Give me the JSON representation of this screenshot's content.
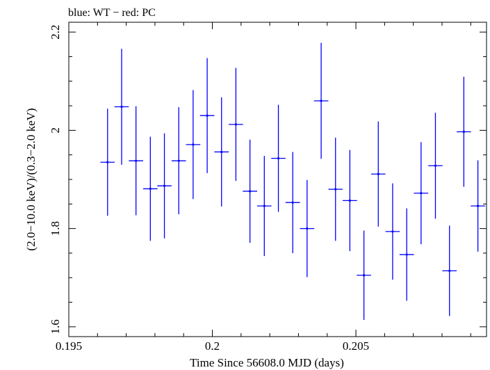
{
  "chart_data": {
    "type": "scatter",
    "title": "blue: WT − red: PC",
    "xlabel": "Time Since 56608.0 MJD (days)",
    "ylabel": "(2.0−10.0 keV)/(0.3−2.0 keV)",
    "xlim": [
      0.195,
      0.20955
    ],
    "ylim": [
      1.58,
      2.22
    ],
    "xticks": [
      {
        "value": 0.195,
        "label": "0.195"
      },
      {
        "value": 0.2,
        "label": "0.2"
      },
      {
        "value": 0.205,
        "label": "0.205"
      }
    ],
    "yticks": [
      {
        "value": 1.6,
        "label": "1.6"
      },
      {
        "value": 1.8,
        "label": "1.8"
      },
      {
        "value": 2.0,
        "label": "2"
      },
      {
        "value": 2.2,
        "label": "2.2"
      }
    ],
    "grid": false,
    "series": [
      {
        "color": "#0000ff",
        "points": [
          {
            "x": 0.19635,
            "y": 1.935,
            "xerr": 0.00025,
            "yerr": 0.109
          },
          {
            "x": 0.19684,
            "y": 2.048,
            "xerr": 0.00025,
            "yerr": 0.118
          },
          {
            "x": 0.19734,
            "y": 1.938,
            "xerr": 0.00025,
            "yerr": 0.111
          },
          {
            "x": 0.19784,
            "y": 1.881,
            "xerr": 0.00025,
            "yerr": 0.106
          },
          {
            "x": 0.19833,
            "y": 1.887,
            "xerr": 0.00025,
            "yerr": 0.107
          },
          {
            "x": 0.19883,
            "y": 1.938,
            "xerr": 0.00025,
            "yerr": 0.109
          },
          {
            "x": 0.19933,
            "y": 1.971,
            "xerr": 0.00025,
            "yerr": 0.111
          },
          {
            "x": 0.19982,
            "y": 2.03,
            "xerr": 0.00025,
            "yerr": 0.117
          },
          {
            "x": 0.20032,
            "y": 1.956,
            "xerr": 0.00025,
            "yerr": 0.111
          },
          {
            "x": 0.20082,
            "y": 2.012,
            "xerr": 0.00025,
            "yerr": 0.115
          },
          {
            "x": 0.20131,
            "y": 1.876,
            "xerr": 0.00025,
            "yerr": 0.105
          },
          {
            "x": 0.20181,
            "y": 1.846,
            "xerr": 0.00025,
            "yerr": 0.102
          },
          {
            "x": 0.2023,
            "y": 1.943,
            "xerr": 0.00025,
            "yerr": 0.109
          },
          {
            "x": 0.2028,
            "y": 1.853,
            "xerr": 0.00025,
            "yerr": 0.103
          },
          {
            "x": 0.2033,
            "y": 1.8,
            "xerr": 0.00025,
            "yerr": 0.099
          },
          {
            "x": 0.20379,
            "y": 2.06,
            "xerr": 0.00025,
            "yerr": 0.118
          },
          {
            "x": 0.20429,
            "y": 1.88,
            "xerr": 0.00025,
            "yerr": 0.105
          },
          {
            "x": 0.20479,
            "y": 1.857,
            "xerr": 0.00025,
            "yerr": 0.103
          },
          {
            "x": 0.20528,
            "y": 1.705,
            "xerr": 0.00025,
            "yerr": 0.091
          },
          {
            "x": 0.20578,
            "y": 1.911,
            "xerr": 0.00025,
            "yerr": 0.107
          },
          {
            "x": 0.20628,
            "y": 1.794,
            "xerr": 0.00025,
            "yerr": 0.098
          },
          {
            "x": 0.20677,
            "y": 1.747,
            "xerr": 0.00025,
            "yerr": 0.094
          },
          {
            "x": 0.20727,
            "y": 1.872,
            "xerr": 0.00025,
            "yerr": 0.104
          },
          {
            "x": 0.20777,
            "y": 1.928,
            "xerr": 0.00025,
            "yerr": 0.108
          },
          {
            "x": 0.20826,
            "y": 1.714,
            "xerr": 0.00025,
            "yerr": 0.092
          },
          {
            "x": 0.20876,
            "y": 1.997,
            "xerr": 0.00025,
            "yerr": 0.112
          },
          {
            "x": 0.20925,
            "y": 1.846,
            "xerr": 0.00025,
            "yerr": 0.093
          }
        ]
      }
    ]
  }
}
